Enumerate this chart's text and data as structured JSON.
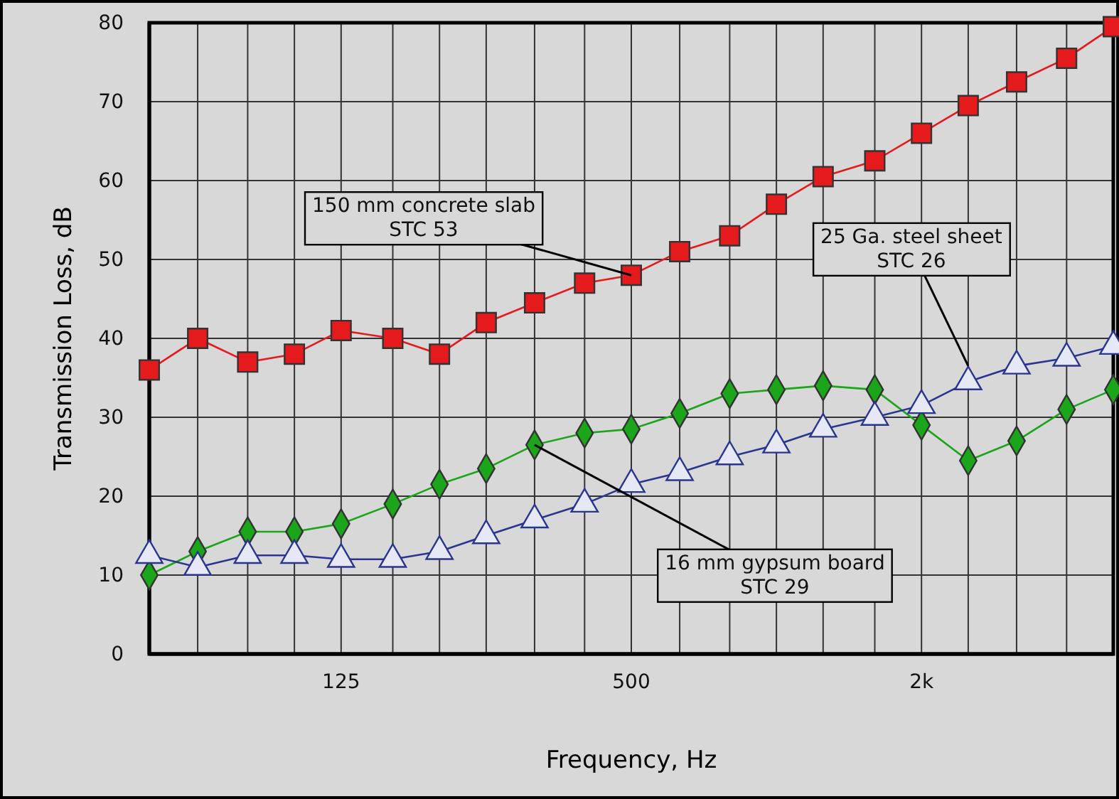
{
  "chart_data": {
    "type": "line",
    "xlabel": "Frequency, Hz",
    "ylabel": "Transmission Loss, dB",
    "log": "x",
    "x": [
      50,
      63,
      80,
      100,
      125,
      160,
      200,
      250,
      315,
      400,
      500,
      630,
      800,
      1000,
      1250,
      1600,
      2000,
      2500,
      3150,
      4000,
      5000
    ],
    "xlim": [
      50,
      5000
    ],
    "xticks": [
      {
        "value": 50,
        "label": null
      },
      {
        "value": 63,
        "label": null
      },
      {
        "value": 80,
        "label": null
      },
      {
        "value": 100,
        "label": null
      },
      {
        "value": 125,
        "label": "125"
      },
      {
        "value": 160,
        "label": null
      },
      {
        "value": 200,
        "label": null
      },
      {
        "value": 250,
        "label": null
      },
      {
        "value": 315,
        "label": null
      },
      {
        "value": 400,
        "label": null
      },
      {
        "value": 500,
        "label": "500"
      },
      {
        "value": 630,
        "label": null
      },
      {
        "value": 800,
        "label": null
      },
      {
        "value": 1000,
        "label": null
      },
      {
        "value": 1250,
        "label": null
      },
      {
        "value": 1600,
        "label": null
      },
      {
        "value": 2000,
        "label": "2k"
      },
      {
        "value": 2500,
        "label": null
      },
      {
        "value": 3150,
        "label": null
      },
      {
        "value": 4000,
        "label": null
      },
      {
        "value": 5000,
        "label": null
      }
    ],
    "ylim": [
      0,
      80
    ],
    "yticks": [
      0,
      10,
      20,
      30,
      40,
      50,
      60,
      70,
      80
    ],
    "grid": true,
    "series": [
      {
        "color": "#e41a1c",
        "marker": "square",
        "values": [
          36,
          40,
          37,
          38,
          41,
          40,
          38,
          42,
          44.5,
          47,
          48,
          51,
          53,
          57,
          60.5,
          62.5,
          66,
          69.5,
          72.5,
          75.5,
          79.5
        ]
      },
      {
        "color": "#1aa51a",
        "marker": "diamond",
        "values": [
          10,
          13,
          15.5,
          15.5,
          16.5,
          19,
          21.5,
          23.5,
          26.5,
          28,
          28.5,
          30.5,
          33,
          33.5,
          34,
          33.5,
          29,
          24.5,
          27,
          31,
          33.5
        ]
      },
      {
        "color": "#2a3590",
        "marker": "triangle",
        "values": [
          12.5,
          11,
          12.5,
          12.5,
          12,
          12,
          13,
          15,
          17,
          19,
          21.5,
          23,
          25,
          26.5,
          28.5,
          30,
          31.5,
          34.5,
          36.5,
          37.5,
          39
        ]
      }
    ],
    "annotations": [
      {
        "text": "150 mm concrete slab\nSTC 53",
        "x": 500,
        "y": 48
      },
      {
        "text": "25 Ga. steel sheet\nSTC 26",
        "x": 2500,
        "y": 36.5
      },
      {
        "text": "16 mm gypsum board\nSTC 29",
        "x": 315,
        "y": 26.5
      }
    ]
  }
}
